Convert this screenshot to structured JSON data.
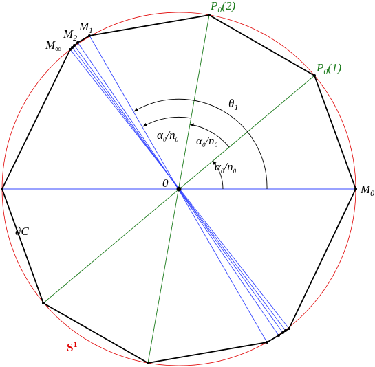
{
  "labels": [
    {
      "color": "#000000",
      "parts": [
        {
          "text": "θ"
        },
        {
          "text": "1",
          "sub": true
        }
      ]
    },
    {
      "color": "#000000",
      "parts": [
        {
          "text": "α"
        },
        {
          "text": "0",
          "sub": true
        },
        {
          "text": "/n"
        },
        {
          "text": "0",
          "sub": true
        }
      ]
    },
    {
      "color": "#000000",
      "parts": [
        {
          "text": "α"
        },
        {
          "text": "0",
          "sub": true
        },
        {
          "text": "/n"
        },
        {
          "text": "0",
          "sub": true
        }
      ]
    },
    {
      "color": "#000000",
      "parts": [
        {
          "text": "α"
        },
        {
          "text": "0",
          "sub": true
        },
        {
          "text": "/n"
        },
        {
          "text": "0",
          "sub": true
        }
      ]
    },
    {
      "color": "#000000",
      "parts": [
        {
          "text": "0"
        }
      ]
    },
    {
      "color": "#000000",
      "parts": [
        {
          "text": "M"
        },
        {
          "text": "0",
          "sub": true
        }
      ]
    },
    {
      "color": "#1a7a1a",
      "parts": [
        {
          "text": "P"
        },
        {
          "text": "0",
          "sub": true
        },
        {
          "text": "(1)"
        }
      ]
    },
    {
      "color": "#1a7a1a",
      "parts": [
        {
          "text": "P"
        },
        {
          "text": "0",
          "sub": true
        },
        {
          "text": "(2)"
        }
      ]
    },
    {
      "color": "#000000",
      "parts": [
        {
          "text": "M"
        },
        {
          "text": "1",
          "sub": true
        }
      ]
    },
    {
      "color": "#000000",
      "parts": [
        {
          "text": "M"
        },
        {
          "text": "2",
          "sub": true
        }
      ]
    },
    {
      "color": "#000000",
      "parts": [
        {
          "text": "M"
        },
        {
          "text": "∞",
          "sub": true
        }
      ]
    },
    {
      "color": "#000000",
      "parts": [
        {
          "text": "∂C"
        }
      ]
    },
    {
      "color": "#e00000",
      "parts": [
        {
          "text": "S"
        },
        {
          "text": "1",
          "sup": true
        }
      ]
    }
  ]
}
